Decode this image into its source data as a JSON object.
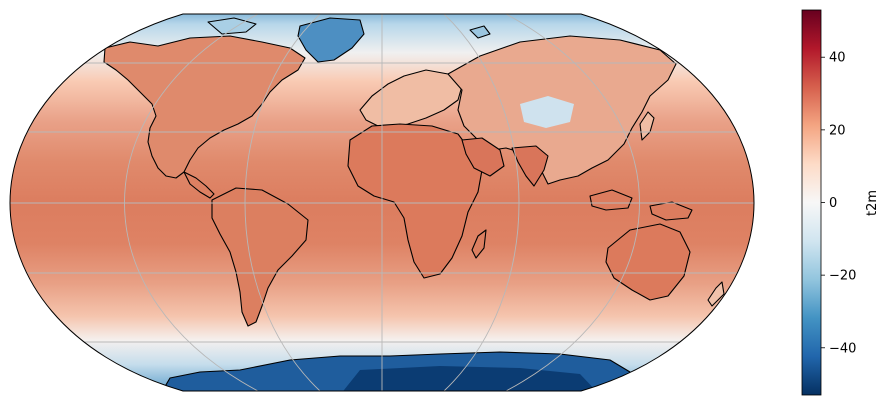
{
  "colorbar": {
    "label": "t2m",
    "ticks": [
      40,
      20,
      0,
      -20,
      -40
    ],
    "tick_labels": [
      "40",
      "20",
      "0",
      "−20",
      "−40"
    ],
    "range": [
      -53,
      53
    ],
    "colormap": "RdBu_r",
    "stops": [
      "#053061",
      "#2166ac",
      "#4393c3",
      "#92c5de",
      "#d1e5f0",
      "#f7f7f7",
      "#fddbc7",
      "#f4a582",
      "#d6604d",
      "#b2182b",
      "#67001f"
    ]
  },
  "map": {
    "projection": "Robinson",
    "gridlines": true,
    "coastlines": true,
    "ocean_base_color": "#df8468"
  }
}
